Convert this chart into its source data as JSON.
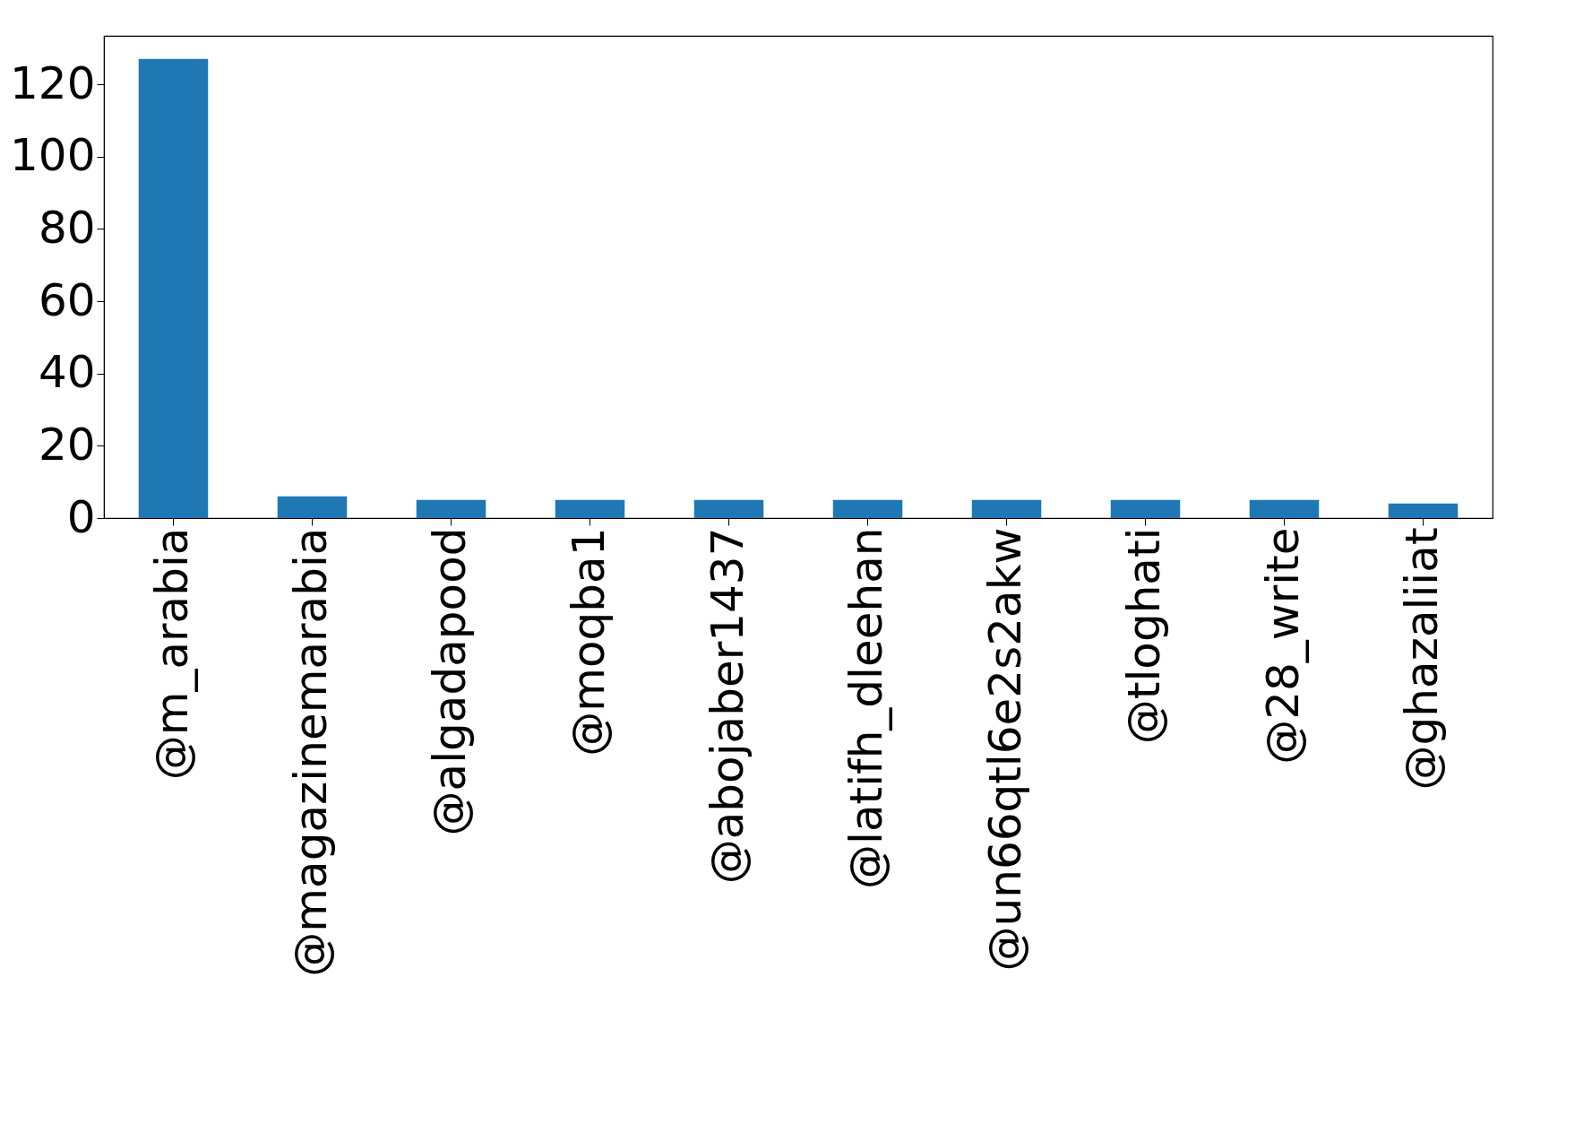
{
  "chart_data": {
    "type": "bar",
    "categories": [
      "@m_arabia",
      "@magazinemarabia",
      "@algadapood",
      "@moqba1",
      "@abojaber1437",
      "@latifh_dleehan",
      "@un66qtl6e2s2akw",
      "@tloghati",
      "@28_write",
      "@ghazaliiat"
    ],
    "values": [
      127,
      6,
      5,
      5,
      5,
      5,
      5,
      5,
      5,
      4
    ],
    "color": "#1f77b4",
    "ylim": [
      0,
      133.4
    ],
    "yticks": [
      0,
      20,
      40,
      60,
      80,
      100,
      120
    ],
    "grid": false
  }
}
